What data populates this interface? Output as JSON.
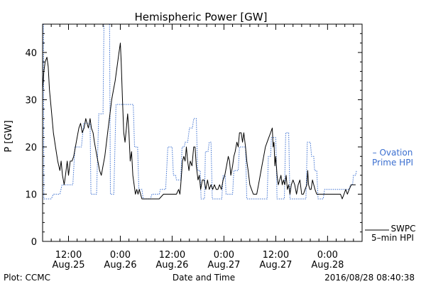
{
  "chart_data": {
    "type": "line",
    "title": "Hemispheric Power [GW]",
    "ylabel": "P [GW]",
    "xlabel": "Date and Time",
    "footer_left": "Plot: CCMC",
    "footer_right": "2016/08/28 08:40:38",
    "ylim": [
      0,
      46
    ],
    "xlim": [
      6,
      80
    ],
    "x_unit": "hours since Aug.25 00:00",
    "y_ticks": [
      0,
      10,
      20,
      30,
      40
    ],
    "x_ticks": [
      {
        "x": 12,
        "line1": "12:00",
        "line2": "Aug.25"
      },
      {
        "x": 24,
        "line1": "0:00",
        "line2": "Aug.26"
      },
      {
        "x": 36,
        "line1": "12:00",
        "line2": "Aug.26"
      },
      {
        "x": 48,
        "line1": "0:00",
        "line2": "Aug.27"
      },
      {
        "x": 60,
        "line1": "12:00",
        "line2": "Aug.27"
      },
      {
        "x": 72,
        "line1": "0:00",
        "line2": "Aug.28"
      }
    ],
    "series": [
      {
        "name": "Ovation Prime HPI",
        "legend_line1": "– Ovation",
        "legend_line2": "Prime HPI",
        "color": "#3b6fd0",
        "style": "dotted-step",
        "points": [
          [
            6.2,
            46
          ],
          [
            6.3,
            9
          ],
          [
            8,
            9
          ],
          [
            8.5,
            10
          ],
          [
            10,
            10
          ],
          [
            10.5,
            12
          ],
          [
            13,
            12
          ],
          [
            13.5,
            20
          ],
          [
            15,
            20
          ],
          [
            15.5,
            25
          ],
          [
            17,
            25
          ],
          [
            17.2,
            10
          ],
          [
            18.5,
            10
          ],
          [
            19,
            27
          ],
          [
            20,
            27
          ],
          [
            20.2,
            46
          ],
          [
            21.5,
            46
          ],
          [
            21.7,
            10
          ],
          [
            22.5,
            10
          ],
          [
            23,
            29
          ],
          [
            27,
            29
          ],
          [
            27.3,
            20
          ],
          [
            28,
            20
          ],
          [
            28.3,
            11
          ],
          [
            29,
            11
          ],
          [
            29.3,
            9
          ],
          [
            31,
            9
          ],
          [
            31.3,
            10
          ],
          [
            33,
            10
          ],
          [
            33.3,
            11
          ],
          [
            34.5,
            11
          ],
          [
            35,
            20
          ],
          [
            36,
            20
          ],
          [
            36.3,
            14
          ],
          [
            36.8,
            14
          ],
          [
            37,
            13
          ],
          [
            38,
            13
          ],
          [
            38.3,
            20
          ],
          [
            38.8,
            20
          ],
          [
            39,
            21
          ],
          [
            39.6,
            21
          ],
          [
            40,
            24
          ],
          [
            40.7,
            24
          ],
          [
            41,
            26
          ],
          [
            41.6,
            26
          ],
          [
            41.9,
            15
          ],
          [
            42.5,
            15
          ],
          [
            42.7,
            9
          ],
          [
            43.5,
            9
          ],
          [
            43.7,
            19
          ],
          [
            44.3,
            19
          ],
          [
            44.6,
            21
          ],
          [
            45,
            21
          ],
          [
            45.3,
            9
          ],
          [
            47.5,
            9
          ],
          [
            47.8,
            14
          ],
          [
            48.3,
            14
          ],
          [
            48.5,
            10
          ],
          [
            50,
            10
          ],
          [
            50.3,
            15
          ],
          [
            51.3,
            15
          ],
          [
            51.6,
            20
          ],
          [
            53,
            20
          ],
          [
            53.3,
            9
          ],
          [
            58,
            9
          ],
          [
            58.3,
            18
          ],
          [
            58.8,
            18
          ],
          [
            59,
            22
          ],
          [
            60,
            22
          ],
          [
            60.3,
            9
          ],
          [
            62,
            9
          ],
          [
            62.3,
            23
          ],
          [
            63,
            23
          ],
          [
            63.3,
            9
          ],
          [
            67,
            9
          ],
          [
            67.3,
            21
          ],
          [
            68,
            21
          ],
          [
            68.3,
            18
          ],
          [
            68.8,
            18
          ],
          [
            69,
            15
          ],
          [
            69.5,
            15
          ],
          [
            69.8,
            9
          ],
          [
            71,
            9
          ],
          [
            71.3,
            11
          ],
          [
            77,
            11
          ],
          [
            77.3,
            12
          ],
          [
            77.8,
            12
          ],
          [
            78,
            14
          ],
          [
            78.5,
            14
          ],
          [
            78.7,
            15
          ]
        ]
      },
      {
        "name": "SWPC 5-min HPI",
        "legend_line1": "SWPC",
        "legend_line2": "5–min HPI",
        "color": "#000000",
        "style": "solid",
        "points": [
          [
            6,
            32
          ],
          [
            6.3,
            36
          ],
          [
            6.6,
            38
          ],
          [
            7,
            39
          ],
          [
            7.3,
            37
          ],
          [
            7.6,
            32
          ],
          [
            8,
            28
          ],
          [
            8.5,
            23
          ],
          [
            9,
            20
          ],
          [
            9.5,
            17
          ],
          [
            10,
            15
          ],
          [
            10.3,
            17
          ],
          [
            10.6,
            14
          ],
          [
            11,
            12
          ],
          [
            11.3,
            14
          ],
          [
            11.7,
            17
          ],
          [
            12,
            14
          ],
          [
            12.4,
            17
          ],
          [
            12.8,
            17
          ],
          [
            13.2,
            18
          ],
          [
            13.6,
            20
          ],
          [
            14,
            22
          ],
          [
            14.4,
            24
          ],
          [
            14.8,
            25
          ],
          [
            15.2,
            23
          ],
          [
            15.6,
            24
          ],
          [
            16,
            26
          ],
          [
            16.3,
            25
          ],
          [
            16.6,
            24
          ],
          [
            17,
            26
          ],
          [
            17.3,
            24
          ],
          [
            17.7,
            23
          ],
          [
            18,
            21
          ],
          [
            18.4,
            19
          ],
          [
            18.8,
            17
          ],
          [
            19.2,
            15
          ],
          [
            19.6,
            14
          ],
          [
            20,
            16
          ],
          [
            20.4,
            18
          ],
          [
            20.8,
            21
          ],
          [
            21.2,
            24
          ],
          [
            21.6,
            27
          ],
          [
            22,
            30
          ],
          [
            22.4,
            32
          ],
          [
            22.8,
            34
          ],
          [
            23.1,
            36
          ],
          [
            23.4,
            38
          ],
          [
            23.7,
            40
          ],
          [
            24,
            42
          ],
          [
            24.2,
            38
          ],
          [
            24.5,
            30
          ],
          [
            24.8,
            23
          ],
          [
            25.1,
            21
          ],
          [
            25.4,
            24
          ],
          [
            25.7,
            27
          ],
          [
            26,
            23
          ],
          [
            26.3,
            17
          ],
          [
            26.6,
            19
          ],
          [
            26.9,
            14
          ],
          [
            27.2,
            12
          ],
          [
            27.5,
            10
          ],
          [
            27.8,
            11
          ],
          [
            28.1,
            10
          ],
          [
            28.4,
            11
          ],
          [
            28.7,
            10
          ],
          [
            29,
            9
          ],
          [
            31,
            9
          ],
          [
            32,
            9
          ],
          [
            33,
            9
          ],
          [
            34,
            10
          ],
          [
            35,
            10
          ],
          [
            36,
            10
          ],
          [
            37,
            10
          ],
          [
            37.5,
            11
          ],
          [
            37.8,
            10
          ],
          [
            38,
            12
          ],
          [
            38.4,
            17
          ],
          [
            38.7,
            18
          ],
          [
            39,
            17
          ],
          [
            39.3,
            20
          ],
          [
            39.6,
            17
          ],
          [
            39.9,
            15
          ],
          [
            40.2,
            17
          ],
          [
            40.6,
            16
          ],
          [
            41,
            20
          ],
          [
            41.3,
            20
          ],
          [
            41.6,
            16
          ],
          [
            42,
            13
          ],
          [
            42.3,
            14
          ],
          [
            42.6,
            11
          ],
          [
            43,
            13
          ],
          [
            43.4,
            13
          ],
          [
            43.8,
            11
          ],
          [
            44.2,
            13
          ],
          [
            44.6,
            11
          ],
          [
            45,
            12
          ],
          [
            45.4,
            11
          ],
          [
            45.8,
            12
          ],
          [
            46.2,
            11
          ],
          [
            46.6,
            11
          ],
          [
            47,
            12
          ],
          [
            47.4,
            11
          ],
          [
            47.8,
            13
          ],
          [
            48.2,
            14
          ],
          [
            48.6,
            16
          ],
          [
            49,
            18
          ],
          [
            49.3,
            17
          ],
          [
            49.6,
            14
          ],
          [
            50,
            16
          ],
          [
            50.3,
            18
          ],
          [
            50.6,
            19
          ],
          [
            51,
            21
          ],
          [
            51.3,
            20
          ],
          [
            51.6,
            23
          ],
          [
            52,
            23
          ],
          [
            52.3,
            21
          ],
          [
            52.6,
            23
          ],
          [
            53,
            20
          ],
          [
            53.3,
            17
          ],
          [
            53.6,
            15
          ],
          [
            54,
            12
          ],
          [
            54.4,
            11
          ],
          [
            54.8,
            10
          ],
          [
            55.2,
            10
          ],
          [
            55.6,
            10
          ],
          [
            56,
            12
          ],
          [
            56.4,
            14
          ],
          [
            56.8,
            16
          ],
          [
            57.2,
            18
          ],
          [
            57.6,
            20
          ],
          [
            58,
            21
          ],
          [
            58.4,
            22
          ],
          [
            58.8,
            23
          ],
          [
            59.2,
            24
          ],
          [
            59.4,
            20
          ],
          [
            59.6,
            21
          ],
          [
            59.8,
            16
          ],
          [
            60,
            18
          ],
          [
            60.3,
            14
          ],
          [
            60.6,
            12
          ],
          [
            60.9,
            13
          ],
          [
            61.2,
            14
          ],
          [
            61.5,
            12
          ],
          [
            61.8,
            13
          ],
          [
            62.1,
            12
          ],
          [
            62.4,
            14
          ],
          [
            62.7,
            11
          ],
          [
            63,
            12
          ],
          [
            63.3,
            10
          ],
          [
            63.6,
            12
          ],
          [
            64,
            13
          ],
          [
            64.4,
            12
          ],
          [
            64.8,
            10
          ],
          [
            65.2,
            12
          ],
          [
            65.6,
            13
          ],
          [
            66,
            10
          ],
          [
            66.4,
            10
          ],
          [
            66.8,
            11
          ],
          [
            67.2,
            12
          ],
          [
            67.4,
            15
          ],
          [
            67.6,
            12
          ],
          [
            67.9,
            11
          ],
          [
            68.2,
            11
          ],
          [
            68.5,
            13
          ],
          [
            68.8,
            12
          ],
          [
            69.1,
            11
          ],
          [
            69.5,
            10
          ],
          [
            70,
            10
          ],
          [
            70.5,
            10
          ],
          [
            71,
            10
          ],
          [
            72,
            10
          ],
          [
            73,
            10
          ],
          [
            74,
            10
          ],
          [
            75,
            10
          ],
          [
            75.4,
            9
          ],
          [
            75.8,
            10
          ],
          [
            76.2,
            11
          ],
          [
            76.6,
            10
          ],
          [
            77,
            11
          ],
          [
            77.5,
            12
          ],
          [
            78,
            12
          ],
          [
            78.5,
            12
          ]
        ]
      }
    ]
  }
}
